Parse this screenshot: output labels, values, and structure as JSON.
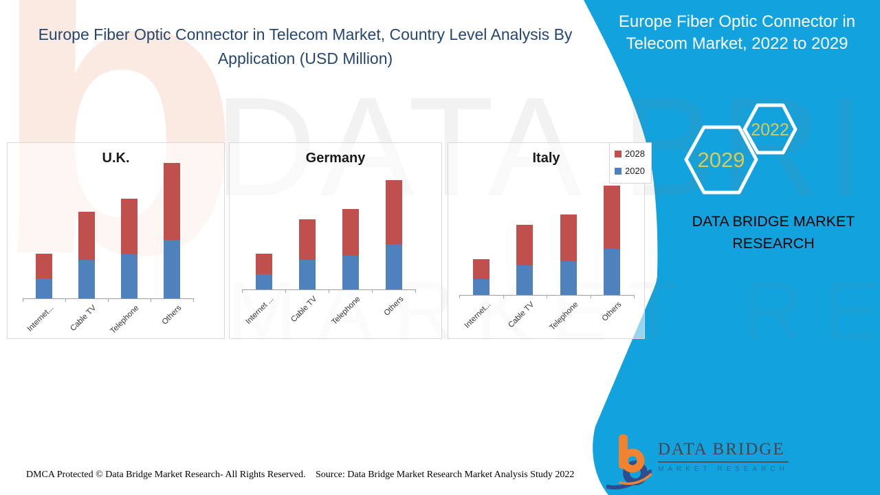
{
  "main_title": "Europe Fiber Optic Connector in Telecom Market, Country Level Analysis By Application (USD Million)",
  "legend": {
    "items": [
      {
        "label": "2028",
        "color": "#C0504D"
      },
      {
        "label": "2020",
        "color": "#4F81BD"
      }
    ]
  },
  "chart_data": [
    {
      "type": "bar",
      "stacked": true,
      "title": "U.K.",
      "categories": [
        "Internet...",
        "Cable TV",
        "Telephone",
        "Others"
      ],
      "series": [
        {
          "name": "2020",
          "color": "#4F81BD",
          "values": [
            29,
            56,
            64,
            85
          ]
        },
        {
          "name": "2028",
          "color": "#C0504D",
          "values": [
            36,
            70,
            81,
            112
          ]
        }
      ],
      "value_units": "relative height, y-axis unlabeled (USD Million)",
      "legend_position": "top-right of Italy panel (shared)",
      "grid": false
    },
    {
      "type": "bar",
      "stacked": true,
      "title": "Germany",
      "categories": [
        "Internet ...",
        "Cable TV",
        "Telephone",
        "Others"
      ],
      "series": [
        {
          "name": "2020",
          "color": "#4F81BD",
          "values": [
            22,
            43,
            49,
            66
          ]
        },
        {
          "name": "2028",
          "color": "#C0504D",
          "values": [
            30,
            59,
            68,
            93
          ]
        }
      ],
      "value_units": "relative height, y-axis unlabeled (USD Million)",
      "grid": false
    },
    {
      "type": "bar",
      "stacked": true,
      "title": "Italy",
      "categories": [
        "Internet...",
        "Cable TV",
        "Telephone",
        "Others"
      ],
      "series": [
        {
          "name": "2020",
          "color": "#4F81BD",
          "values": [
            23,
            43,
            49,
            67
          ]
        },
        {
          "name": "2028",
          "color": "#C0504D",
          "values": [
            29,
            59,
            68,
            92
          ]
        }
      ],
      "value_units": "relative height, y-axis unlabeled (USD Million)",
      "grid": false
    }
  ],
  "side_panel": {
    "title": "Europe Fiber Optic Connector in Telecom Market, 2022 to 2029",
    "hexagon_front": "2029",
    "hexagon_back": "2022",
    "caption": "DATA BRIDGE MARKET RESEARCH",
    "background_color": "#12A3DE",
    "hexagon_text_color": "#DCC94F"
  },
  "logo": {
    "title": "DATA BRIDGE",
    "subtitle": "MARKET RESEARCH",
    "orange": "#EF8332",
    "navy": "#2F4D8D"
  },
  "footer": {
    "dmca": "DMCA Protected © Data Bridge Market Research- All Rights Reserved.",
    "source": "Source: Data Bridge Market Research Market Analysis Study 2022"
  },
  "watermarks": {
    "letter": "b",
    "line1": "DATA BRIDGE",
    "line2": "MARKET RESEARCH"
  }
}
